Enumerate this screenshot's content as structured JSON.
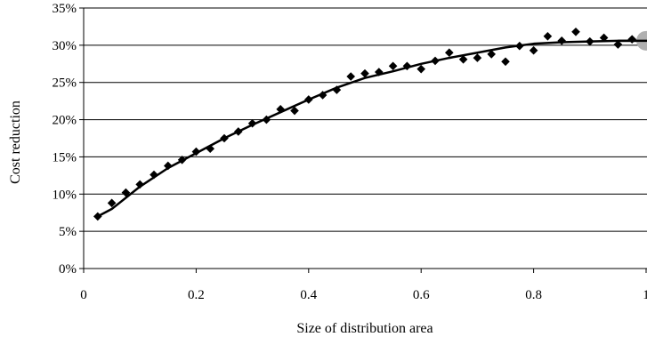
{
  "chart_data": {
    "type": "scatter",
    "xlabel": "Size of distribution area",
    "ylabel": "Cost reduction",
    "xlim": [
      0,
      1
    ],
    "ylim": [
      0,
      0.35
    ],
    "x_ticks": [
      0,
      0.2,
      0.4,
      0.6,
      0.8,
      1
    ],
    "x_tick_labels": [
      "0",
      "0.2",
      "0.4",
      "0.6",
      "0.8",
      "1"
    ],
    "y_ticks": [
      0,
      0.05,
      0.1,
      0.15,
      0.2,
      0.25,
      0.3,
      0.35
    ],
    "y_tick_labels": [
      "0%",
      "5%",
      "10%",
      "15%",
      "20%",
      "25%",
      "30%",
      "35%"
    ],
    "grid": "horizontal",
    "legend": "none",
    "series": [
      {
        "marker": "diamond",
        "color": "#000000",
        "x": [
          0.025,
          0.05,
          0.075,
          0.1,
          0.125,
          0.15,
          0.175,
          0.2,
          0.225,
          0.25,
          0.275,
          0.3,
          0.325,
          0.35,
          0.375,
          0.4,
          0.425,
          0.45,
          0.475,
          0.5,
          0.525,
          0.55,
          0.575,
          0.6,
          0.625,
          0.65,
          0.675,
          0.7,
          0.725,
          0.75,
          0.775,
          0.8,
          0.825,
          0.85,
          0.875,
          0.9,
          0.925,
          0.95,
          0.975
        ],
        "y": [
          0.07,
          0.088,
          0.102,
          0.113,
          0.126,
          0.138,
          0.146,
          0.157,
          0.161,
          0.175,
          0.184,
          0.195,
          0.2,
          0.214,
          0.212,
          0.227,
          0.233,
          0.24,
          0.258,
          0.262,
          0.264,
          0.272,
          0.272,
          0.268,
          0.279,
          0.29,
          0.281,
          0.283,
          0.288,
          0.278,
          0.299,
          0.293,
          0.312,
          0.306,
          0.318,
          0.305,
          0.31,
          0.301,
          0.308
        ]
      },
      {
        "type": "line",
        "color": "#000000",
        "x": [
          0.025,
          0.05,
          0.1,
          0.15,
          0.2,
          0.25,
          0.3,
          0.35,
          0.4,
          0.45,
          0.5,
          0.55,
          0.6,
          0.65,
          0.7,
          0.75,
          0.8,
          0.85,
          0.9,
          0.95,
          1.0
        ],
        "y": [
          0.07,
          0.08,
          0.11,
          0.135,
          0.155,
          0.175,
          0.193,
          0.21,
          0.227,
          0.243,
          0.256,
          0.265,
          0.275,
          0.283,
          0.29,
          0.297,
          0.302,
          0.304,
          0.305,
          0.306,
          0.306
        ]
      }
    ],
    "highlight_point": {
      "x": 1.0,
      "y": 0.306,
      "color": "#b0b0b0"
    }
  }
}
